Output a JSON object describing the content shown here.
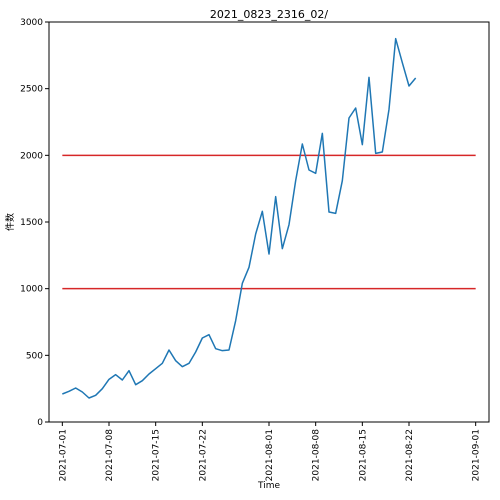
{
  "chart_data": {
    "type": "line",
    "title": "2021_0823_2316_02/",
    "xlabel": "Time",
    "ylabel": "件数",
    "xlim": [
      "2021-06-29",
      "2021-09-03"
    ],
    "ylim": [
      0,
      3000
    ],
    "x_ticks": [
      "2021-07-01",
      "2021-07-08",
      "2021-07-15",
      "2021-07-22",
      "2021-08-01",
      "2021-08-08",
      "2021-08-15",
      "2021-08-22",
      "2021-09-01"
    ],
    "y_ticks": [
      0,
      500,
      1000,
      1500,
      2000,
      2500,
      3000
    ],
    "grid": false,
    "series": [
      {
        "color": "#1f77b4",
        "x": [
          "2021-07-01",
          "2021-07-02",
          "2021-07-03",
          "2021-07-04",
          "2021-07-05",
          "2021-07-06",
          "2021-07-07",
          "2021-07-08",
          "2021-07-09",
          "2021-07-10",
          "2021-07-11",
          "2021-07-12",
          "2021-07-13",
          "2021-07-14",
          "2021-07-15",
          "2021-07-16",
          "2021-07-17",
          "2021-07-18",
          "2021-07-19",
          "2021-07-20",
          "2021-07-21",
          "2021-07-22",
          "2021-07-23",
          "2021-07-24",
          "2021-07-25",
          "2021-07-26",
          "2021-07-27",
          "2021-07-28",
          "2021-07-29",
          "2021-07-30",
          "2021-07-31",
          "2021-08-01",
          "2021-08-02",
          "2021-08-03",
          "2021-08-04",
          "2021-08-05",
          "2021-08-06",
          "2021-08-07",
          "2021-08-08",
          "2021-08-09",
          "2021-08-10",
          "2021-08-11",
          "2021-08-12",
          "2021-08-13",
          "2021-08-14",
          "2021-08-15",
          "2021-08-16",
          "2021-08-17",
          "2021-08-18",
          "2021-08-19",
          "2021-08-20",
          "2021-08-21",
          "2021-08-22",
          "2021-08-23"
        ],
        "values": [
          210,
          230,
          255,
          225,
          180,
          200,
          250,
          320,
          355,
          315,
          385,
          280,
          310,
          360,
          400,
          440,
          540,
          460,
          415,
          440,
          525,
          630,
          655,
          550,
          535,
          540,
          760,
          1040,
          1160,
          1410,
          1580,
          1260,
          1690,
          1300,
          1480,
          1810,
          2085,
          1890,
          1865,
          2165,
          1575,
          1565,
          1810,
          2280,
          2355,
          2080,
          2585,
          2015,
          2025,
          2345,
          2875,
          2695,
          2520,
          2580
        ]
      }
    ],
    "hlines": [
      {
        "y": 1000,
        "color": "#d62728"
      },
      {
        "y": 2000,
        "color": "#d62728"
      }
    ]
  }
}
